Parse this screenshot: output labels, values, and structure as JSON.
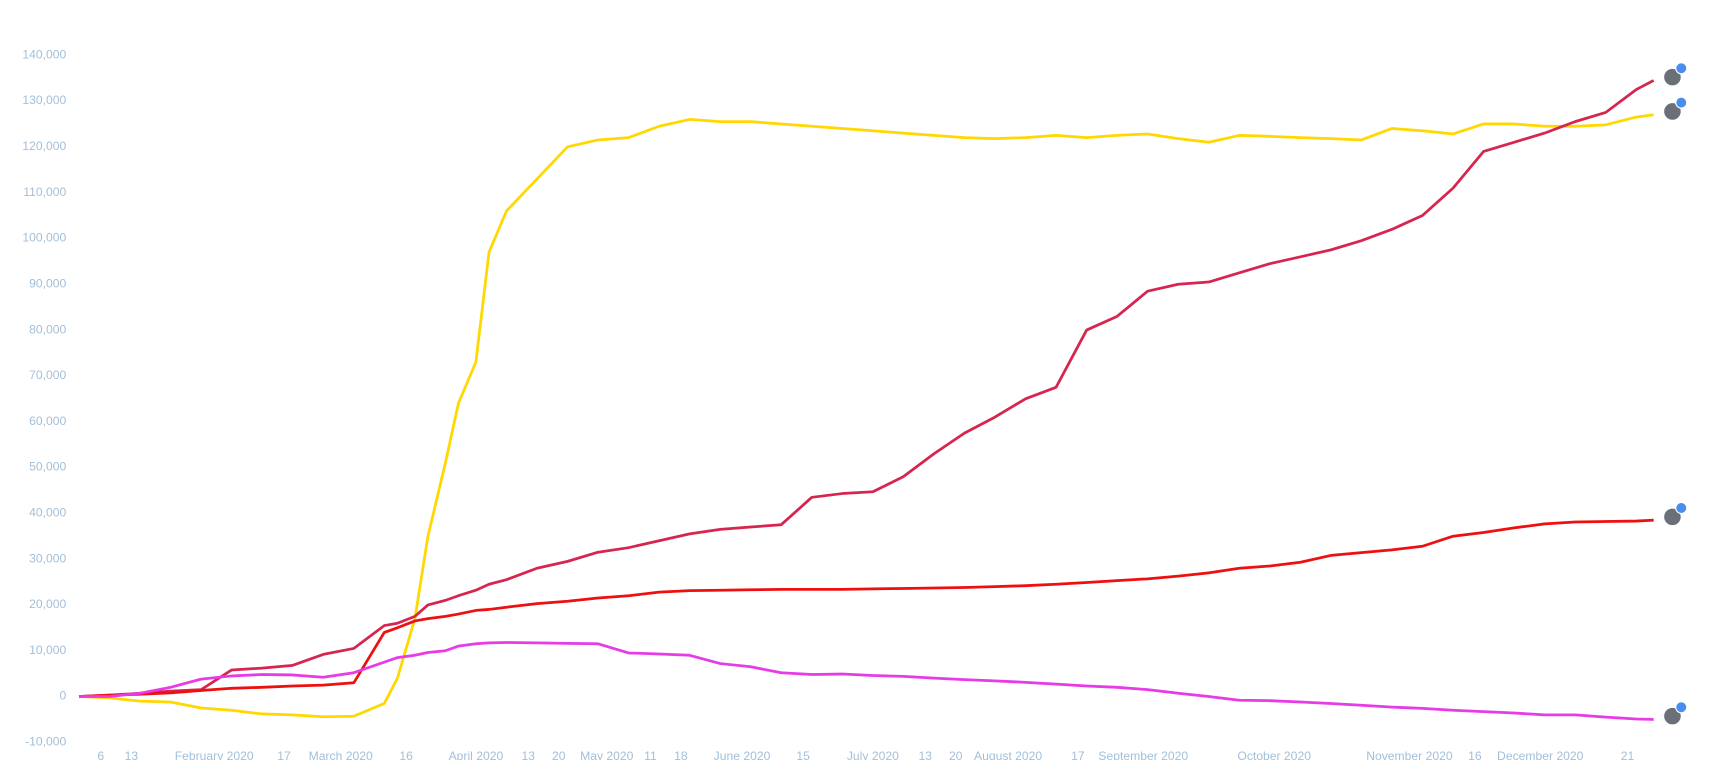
{
  "chart_data": {
    "type": "line",
    "x": [
      1,
      8,
      15,
      22,
      29,
      36,
      43,
      50,
      57,
      64,
      71,
      74,
      78,
      81,
      85,
      88,
      92,
      95,
      99,
      106,
      113,
      120,
      127,
      134,
      141,
      148,
      155,
      162,
      169,
      176,
      183,
      190,
      197,
      204,
      211,
      218,
      225,
      232,
      239,
      246,
      253,
      260,
      267,
      274,
      281,
      288,
      295,
      302,
      309,
      316,
      323,
      330,
      337,
      344,
      351,
      358,
      362
    ],
    "xlim": [
      1,
      362
    ],
    "xticks": [
      {
        "value": 6,
        "label": "6"
      },
      {
        "value": 13,
        "label": "13"
      },
      {
        "value": 32,
        "label": "February 2020"
      },
      {
        "value": 48,
        "label": "17"
      },
      {
        "value": 61,
        "label": "March 2020"
      },
      {
        "value": 76,
        "label": "16"
      },
      {
        "value": 92,
        "label": "April 2020"
      },
      {
        "value": 104,
        "label": "13"
      },
      {
        "value": 111,
        "label": "20"
      },
      {
        "value": 122,
        "label": "May 2020"
      },
      {
        "value": 132,
        "label": "11"
      },
      {
        "value": 139,
        "label": "18"
      },
      {
        "value": 153,
        "label": "June 2020"
      },
      {
        "value": 167,
        "label": "15"
      },
      {
        "value": 183,
        "label": "July 2020"
      },
      {
        "value": 195,
        "label": "13"
      },
      {
        "value": 202,
        "label": "20"
      },
      {
        "value": 214,
        "label": "August 2020"
      },
      {
        "value": 230,
        "label": "17"
      },
      {
        "value": 245,
        "label": "September 2020"
      },
      {
        "value": 275,
        "label": "October 2020"
      },
      {
        "value": 306,
        "label": "November 2020"
      },
      {
        "value": 321,
        "label": "16"
      },
      {
        "value": 336,
        "label": "December 2020"
      },
      {
        "value": 356,
        "label": "21"
      }
    ],
    "ylim": [
      -10000,
      140000
    ],
    "yticks": [
      {
        "value": -10000,
        "label": "-10,000"
      },
      0,
      {
        "value": 10000,
        "label": "10,000"
      },
      {
        "value": 20000,
        "label": "20,000"
      },
      {
        "value": 30000,
        "label": "30,000"
      },
      {
        "value": 40000,
        "label": "40,000"
      },
      {
        "value": 50000,
        "label": "50,000"
      },
      {
        "value": 60000,
        "label": "60,000"
      },
      {
        "value": 70000,
        "label": "70,000"
      },
      {
        "value": 80000,
        "label": "80,000"
      },
      {
        "value": 90000,
        "label": "90,000"
      },
      {
        "value": 100000,
        "label": "100,000"
      },
      {
        "value": 110000,
        "label": "110,000"
      },
      {
        "value": 120000,
        "label": "120,000"
      },
      {
        "value": 130000,
        "label": "130,000"
      },
      {
        "value": 140000,
        "label": "140,000"
      }
    ],
    "grid": false,
    "series": [
      {
        "color": "#ffd800",
        "values": [
          0,
          -300,
          -1000,
          -1200,
          -2500,
          -3000,
          -3800,
          -4000,
          -4400,
          -4300,
          -1500,
          4000,
          17000,
          35000,
          51000,
          64000,
          73000,
          97000,
          106000,
          113000,
          120000,
          121500,
          122000,
          124500,
          126000,
          125500,
          125500,
          125000,
          124500,
          124000,
          123500,
          123000,
          122500,
          122000,
          121800,
          122000,
          122500,
          122000,
          122500,
          122800,
          121800,
          121000,
          122500,
          122300,
          122000,
          121800,
          121500,
          124000,
          123500,
          122800,
          125000,
          125000,
          124500,
          124500,
          124800,
          126500,
          127000
        ]
      },
      {
        "color": "#d6254f",
        "values": [
          0,
          300,
          700,
          1200,
          1500,
          5800,
          6200,
          6800,
          9200,
          10500,
          15500,
          16000,
          17500,
          20000,
          21000,
          22000,
          23200,
          24500,
          25500,
          28000,
          29500,
          31500,
          32500,
          34000,
          35500,
          36500,
          37000,
          37500,
          43500,
          44300,
          44700,
          48000,
          53000,
          57500,
          61000,
          65000,
          67500,
          80000,
          83000,
          88500,
          90000,
          90500,
          92500,
          94500,
          96000,
          97500,
          99500,
          102000,
          105000,
          111000,
          119000,
          121000,
          123000,
          125500,
          127500,
          132500,
          134500
        ]
      },
      {
        "color": "#ee1010",
        "values": [
          0,
          300,
          500,
          800,
          1300,
          1800,
          2000,
          2300,
          2500,
          3000,
          14000,
          15000,
          16500,
          17000,
          17500,
          18000,
          18800,
          19000,
          19500,
          20300,
          20800,
          21500,
          22000,
          22800,
          23100,
          23200,
          23300,
          23400,
          23400,
          23400,
          23500,
          23600,
          23700,
          23800,
          24000,
          24200,
          24500,
          24900,
          25300,
          25700,
          26300,
          27000,
          28000,
          28500,
          29300,
          30800,
          31400,
          32000,
          32800,
          35000,
          35800,
          36800,
          37700,
          38100,
          38200,
          38300,
          38500
        ]
      },
      {
        "color": "#e63be6",
        "values": [
          0,
          0,
          700,
          2000,
          3800,
          4500,
          4800,
          4700,
          4200,
          5200,
          7500,
          8500,
          9000,
          9600,
          10000,
          11000,
          11500,
          11700,
          11800,
          11700,
          11600,
          11500,
          9500,
          9300,
          9000,
          7200,
          6500,
          5200,
          4800,
          4900,
          4600,
          4400,
          4000,
          3700,
          3400,
          3100,
          2700,
          2300,
          2000,
          1500,
          700,
          0,
          -800,
          -900,
          -1200,
          -1500,
          -1900,
          -2300,
          -2600,
          -3000,
          -3300,
          -3600,
          -4000,
          -4000,
          -4500,
          -4900,
          -5000
        ]
      }
    ]
  }
}
